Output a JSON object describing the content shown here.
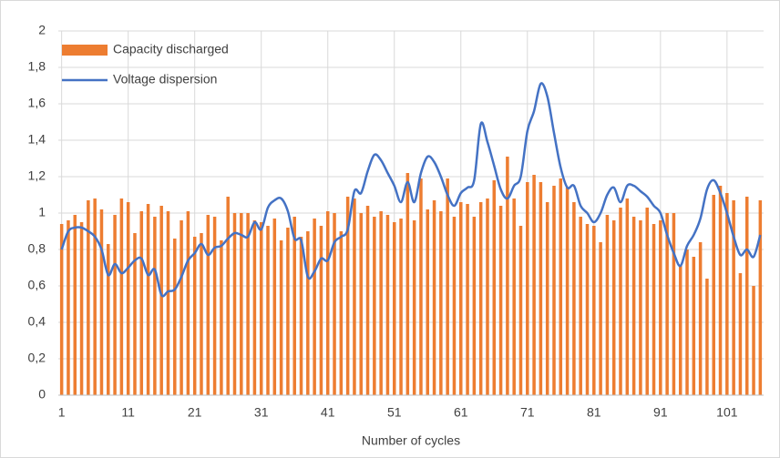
{
  "chart_data": {
    "type": "bar_line",
    "x_label": "Number of cycles",
    "categories": [
      "1",
      null,
      null,
      null,
      null,
      null,
      null,
      null,
      null,
      null,
      "11",
      null,
      null,
      null,
      null,
      null,
      null,
      null,
      null,
      null,
      "21",
      null,
      null,
      null,
      null,
      null,
      null,
      null,
      null,
      null,
      "31",
      null,
      null,
      null,
      null,
      null,
      null,
      null,
      null,
      null,
      "41",
      null,
      null,
      null,
      null,
      null,
      null,
      null,
      null,
      null,
      "51",
      null,
      null,
      null,
      null,
      null,
      null,
      null,
      null,
      null,
      "61",
      null,
      null,
      null,
      null,
      null,
      null,
      null,
      null,
      null,
      "71",
      null,
      null,
      null,
      null,
      null,
      null,
      null,
      null,
      null,
      "81",
      null,
      null,
      null,
      null,
      null,
      null,
      null,
      null,
      null,
      "91",
      null,
      null,
      null,
      null,
      null,
      null,
      null,
      null,
      null,
      "101",
      null,
      null,
      null,
      null,
      null
    ],
    "series": [
      {
        "name": "Capacity discharged",
        "type": "bar",
        "color": "#ED7D31",
        "values": [
          0.94,
          0.96,
          0.99,
          0.95,
          1.07,
          1.08,
          1.02,
          0.83,
          0.99,
          1.08,
          1.06,
          0.89,
          1.01,
          1.05,
          0.98,
          1.04,
          1.01,
          0.86,
          0.96,
          1.01,
          0.87,
          0.89,
          0.99,
          0.98,
          0.85,
          1.09,
          1.0,
          1.0,
          1.0,
          0.96,
          0.95,
          0.93,
          0.97,
          0.85,
          0.92,
          0.98,
          0.87,
          0.9,
          0.97,
          0.93,
          1.01,
          1.0,
          0.9,
          1.09,
          1.08,
          1.0,
          1.04,
          0.98,
          1.01,
          0.99,
          0.95,
          0.97,
          1.22,
          0.96,
          1.19,
          1.02,
          1.07,
          1.01,
          1.19,
          0.98,
          1.06,
          1.05,
          0.98,
          1.06,
          1.08,
          1.18,
          1.04,
          1.31,
          1.08,
          0.93,
          1.17,
          1.21,
          1.17,
          1.06,
          1.15,
          1.19,
          1.14,
          1.06,
          0.98,
          0.94,
          0.93,
          0.84,
          0.99,
          0.96,
          1.03,
          1.08,
          0.98,
          0.96,
          1.03,
          0.94,
          0.96,
          1.0,
          1.0,
          0.71,
          0.8,
          0.76,
          0.84,
          0.64,
          1.1,
          1.15,
          1.11,
          1.07,
          0.67,
          1.09,
          0.6,
          1.07
        ]
      },
      {
        "name": "Voltage dispersion",
        "type": "line",
        "color": "#4472C4",
        "values": [
          0.8,
          0.9,
          0.92,
          0.92,
          0.9,
          0.87,
          0.8,
          0.66,
          0.72,
          0.67,
          0.7,
          0.74,
          0.75,
          0.66,
          0.69,
          0.55,
          0.57,
          0.58,
          0.65,
          0.74,
          0.78,
          0.83,
          0.77,
          0.81,
          0.82,
          0.86,
          0.89,
          0.88,
          0.87,
          0.95,
          0.91,
          1.03,
          1.07,
          1.08,
          1.01,
          0.86,
          0.85,
          0.65,
          0.68,
          0.75,
          0.74,
          0.84,
          0.87,
          0.91,
          1.12,
          1.11,
          1.23,
          1.32,
          1.29,
          1.22,
          1.15,
          1.06,
          1.17,
          1.06,
          1.22,
          1.31,
          1.28,
          1.2,
          1.1,
          1.04,
          1.11,
          1.14,
          1.18,
          1.49,
          1.39,
          1.26,
          1.13,
          1.08,
          1.15,
          1.2,
          1.45,
          1.56,
          1.71,
          1.64,
          1.44,
          1.25,
          1.14,
          1.15,
          1.04,
          1.0,
          0.95,
          1.0,
          1.1,
          1.14,
          1.06,
          1.15,
          1.15,
          1.12,
          1.09,
          1.04,
          1.0,
          0.88,
          0.78,
          0.71,
          0.82,
          0.88,
          0.97,
          1.13,
          1.18,
          1.11,
          1.0,
          0.87,
          0.77,
          0.8,
          0.76,
          0.88
        ]
      }
    ],
    "ylim": [
      0,
      2
    ],
    "yticks": [
      0,
      {
        "value": 0.2,
        "label": "0,2"
      },
      {
        "value": 0.4,
        "label": "0,4"
      },
      {
        "value": 0.6,
        "label": "0,6"
      },
      {
        "value": 0.8,
        "label": "0,8"
      },
      1,
      {
        "value": 1.2,
        "label": "1,2"
      },
      {
        "value": 1.4,
        "label": "1,4"
      },
      {
        "value": 1.6,
        "label": "1,6"
      },
      {
        "value": 1.8,
        "label": "1,8"
      },
      2
    ],
    "grid": true,
    "legend": "top-left"
  }
}
